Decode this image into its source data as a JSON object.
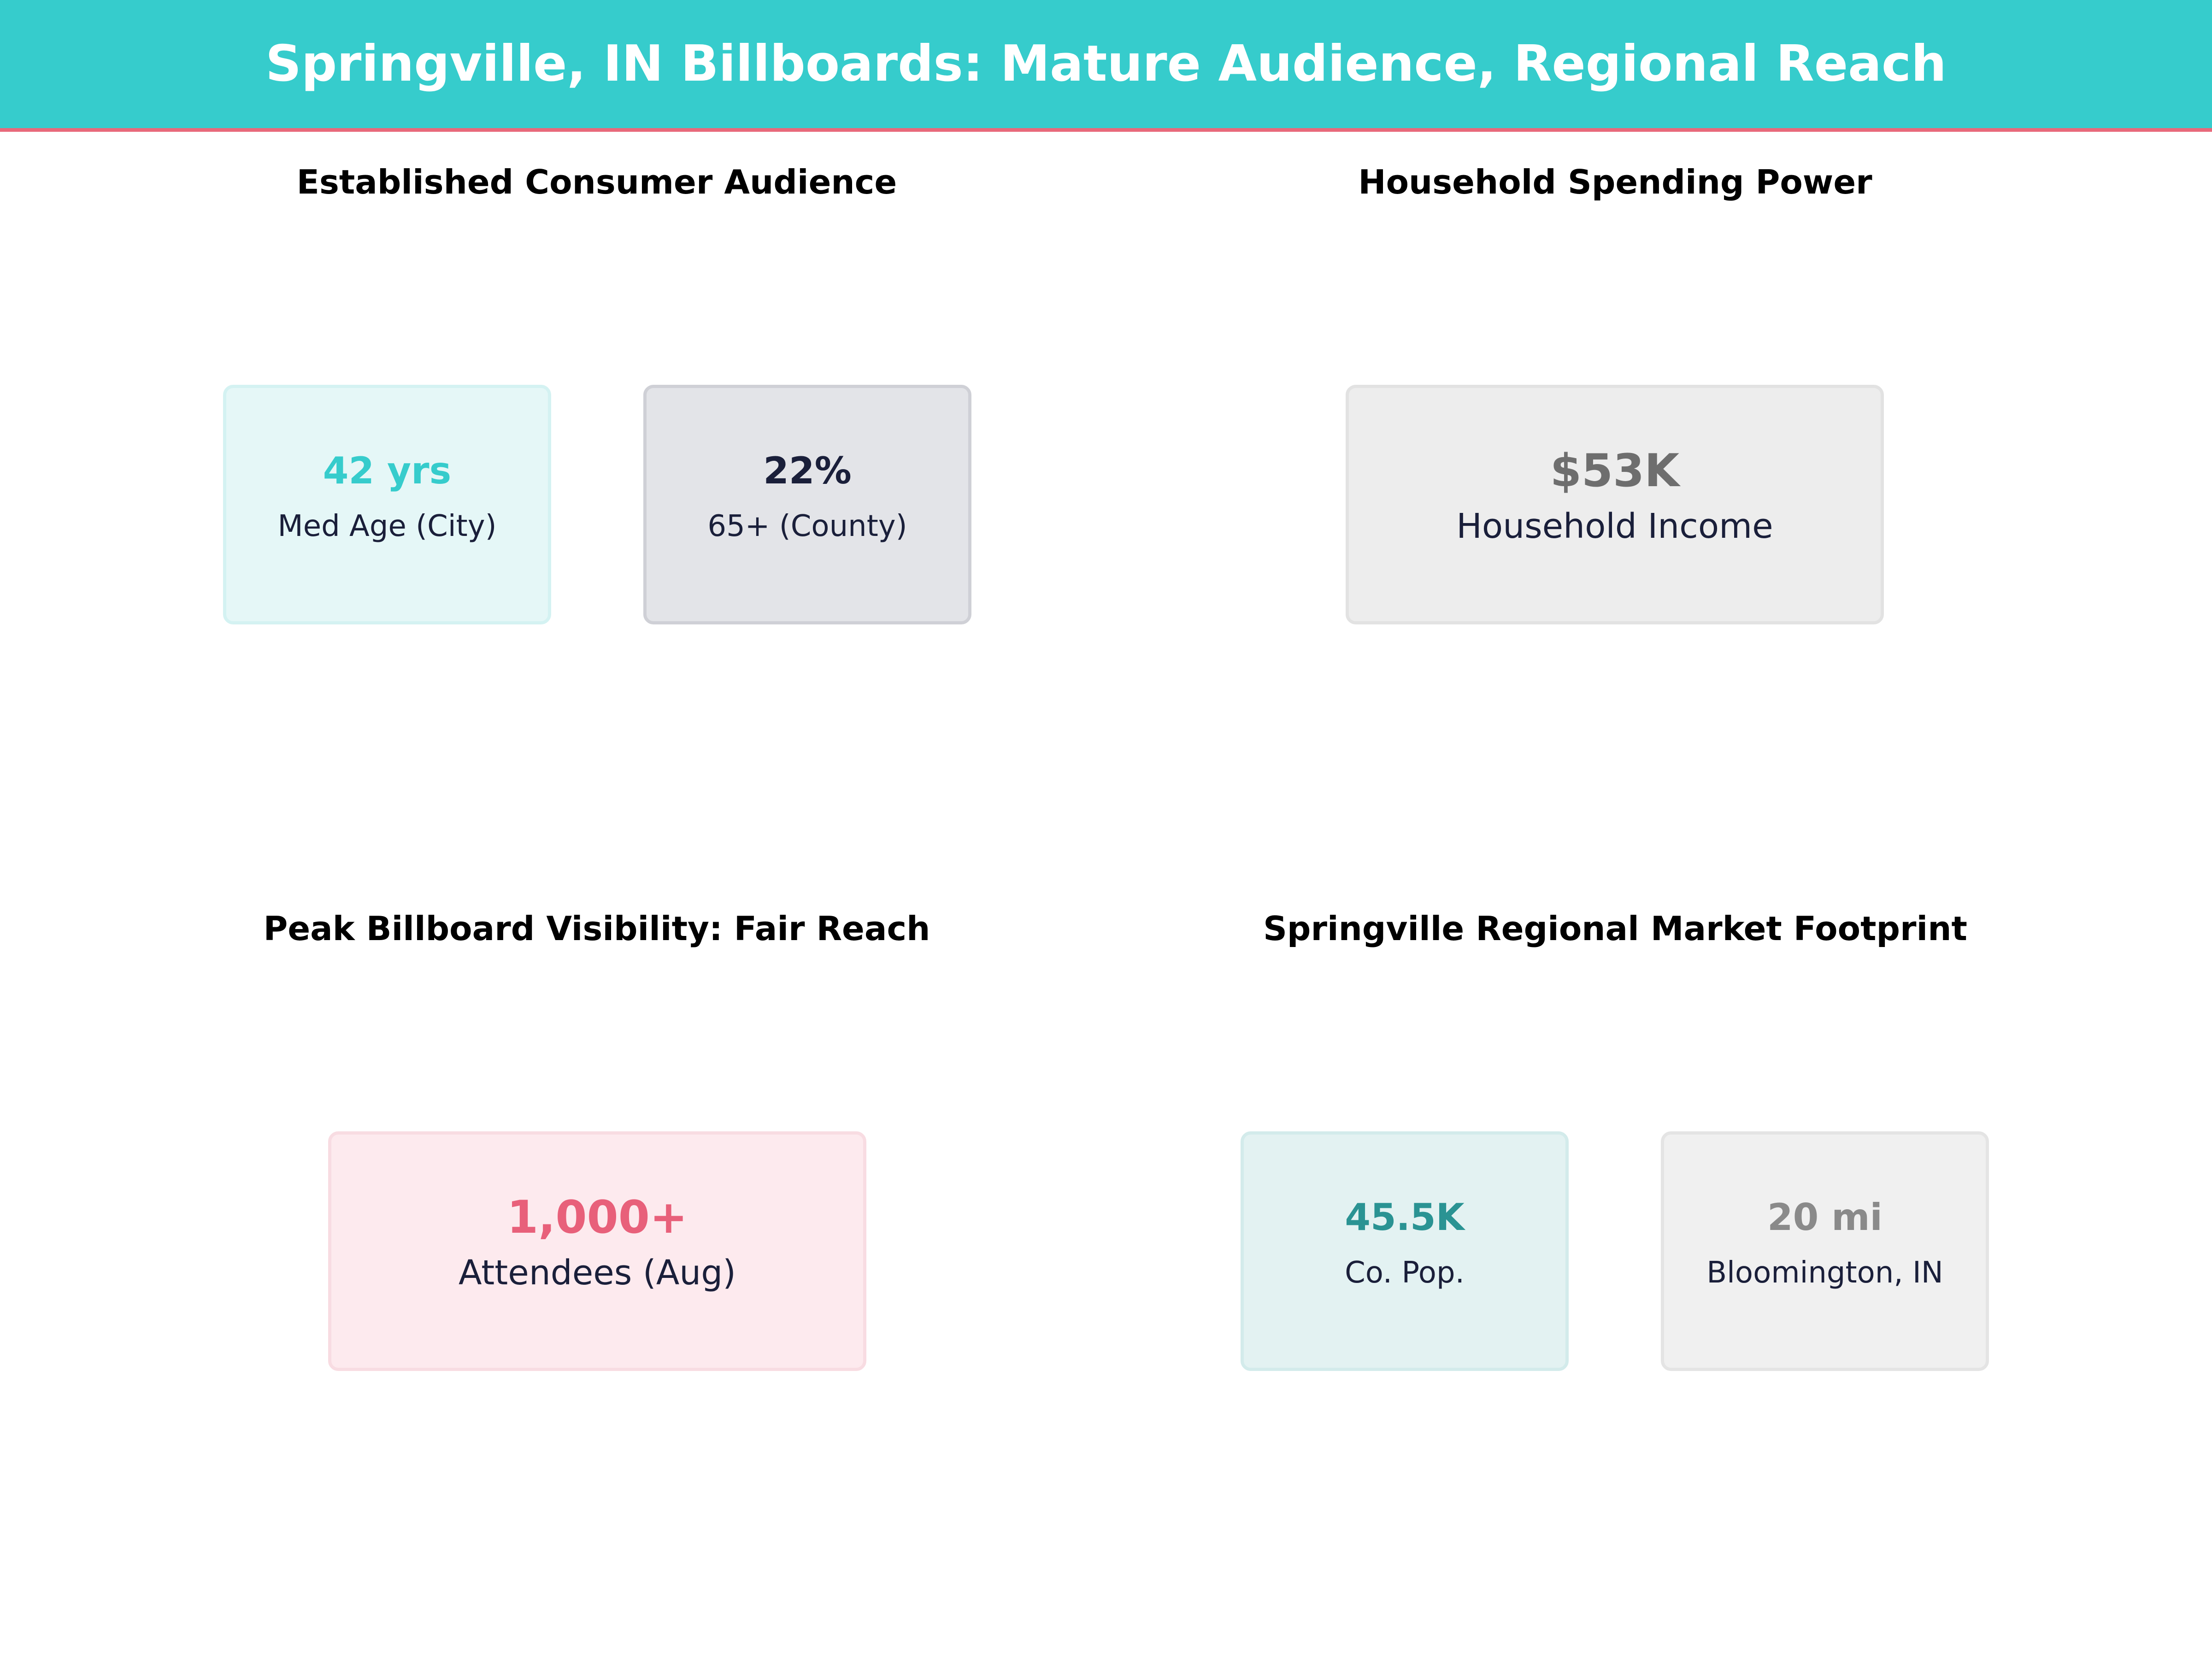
{
  "header": {
    "title": "Springville, IN Billboards: Mature Audience, Regional Reach",
    "background_color": "#36cccc",
    "accent_color": "#e8697b"
  },
  "chart_data": [
    {
      "type": "table",
      "title": "Established Consumer Audience",
      "cards": [
        {
          "value": "42 yrs",
          "label": "Med Age (City)",
          "color": "#36cccc"
        },
        {
          "value": "22%",
          "label": "65+ (County)",
          "color": "#1a1f3a"
        }
      ]
    },
    {
      "type": "table",
      "title": "Household Spending Power",
      "cards": [
        {
          "value": "$53K",
          "label": "Household Income",
          "color": "#6e6e6e"
        }
      ]
    },
    {
      "type": "table",
      "title": "Peak Billboard Visibility: Fair Reach",
      "cards": [
        {
          "value": "1,000+",
          "label": "Attendees (Aug)",
          "color": "#e8607a"
        }
      ]
    },
    {
      "type": "table",
      "title": "Springville Regional Market Footprint",
      "cards": [
        {
          "value": "45.5K",
          "label": "Co. Pop.",
          "color": "#2a9393"
        },
        {
          "value": "20 mi",
          "label": "Bloomington, IN",
          "color": "#8a8a8a"
        }
      ]
    }
  ]
}
